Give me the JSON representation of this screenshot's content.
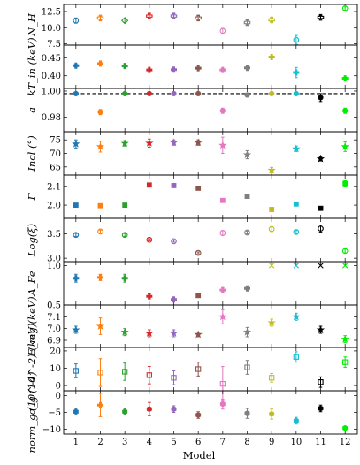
{
  "model_colors": [
    "#1f77b4",
    "#ff7f0e",
    "#2ca02c",
    "#d62728",
    "#9467bd",
    "#8c564b",
    "#e377c2",
    "#7f7f7f",
    "#bcbd22",
    "#17becf",
    "#000000",
    "#00ee00"
  ],
  "chart_data": {
    "type": "scatter",
    "x_label": "Model",
    "x": [
      1,
      2,
      3,
      4,
      5,
      6,
      7,
      8,
      9,
      10,
      11,
      12
    ],
    "x_ticks": [
      "1",
      "2",
      "3",
      "4",
      "5",
      "6",
      "7",
      "8",
      "9",
      "10",
      "11",
      "12"
    ],
    "xlim": [
      0.5,
      12.5
    ],
    "panels": [
      {
        "key": "nh",
        "ylabel": "N_H",
        "ylim": [
          7.3,
          13.6
        ],
        "yticks": [
          7.5,
          10.0,
          12.5
        ],
        "yticklabels": [
          "7.5",
          "10.0",
          "12.5"
        ],
        "markers": [
          "o",
          "P",
          "D",
          "P",
          "P",
          "P",
          "o",
          "P",
          "P",
          "o",
          "P",
          "o"
        ],
        "filled": [
          false,
          false,
          false,
          false,
          false,
          false,
          false,
          false,
          false,
          false,
          false,
          false
        ],
        "values": [
          11.1,
          11.5,
          11.1,
          11.8,
          11.8,
          11.5,
          9.5,
          10.8,
          11.2,
          8.1,
          11.6,
          13.0
        ],
        "errors": [
          0.4,
          0.3,
          0.3,
          0.4,
          0.3,
          0.4,
          0.4,
          0.4,
          0.3,
          0.7,
          0.3,
          0.3
        ]
      },
      {
        "key": "kt",
        "ylabel": "kT_in (keV)",
        "ylim": [
          0.365,
          0.485
        ],
        "yticks": [
          0.4,
          0.45
        ],
        "yticklabels": [
          "0.40",
          "0.45"
        ],
        "markers": [
          "P",
          "P",
          "P",
          "P",
          "P",
          "P",
          "P",
          "P",
          "P",
          "P",
          "P",
          "P"
        ],
        "filled": [
          true,
          true,
          true,
          true,
          true,
          true,
          true,
          true,
          true,
          true,
          true,
          true
        ],
        "values": [
          0.428,
          0.434,
          0.427,
          0.416,
          0.417,
          0.421,
          0.416,
          0.422,
          0.452,
          0.409,
          null,
          0.393
        ],
        "errors": [
          0.004,
          0.002,
          0.003,
          0.002,
          0.002,
          0.002,
          0.004,
          0.003,
          0.002,
          0.014,
          null,
          0.003
        ]
      },
      {
        "key": "a",
        "ylabel": "a",
        "ylim": [
          0.969,
          1.002
        ],
        "yticks": [
          0.98,
          1.0
        ],
        "yticklabels": [
          "0.98",
          "1.00"
        ],
        "reference_line": 0.998,
        "markers": [
          "o",
          "o",
          "o",
          "o",
          "o",
          "o",
          "o",
          "o",
          "o",
          "o",
          "o",
          "o"
        ],
        "filled": [
          true,
          true,
          true,
          true,
          true,
          true,
          true,
          true,
          true,
          true,
          true,
          true
        ],
        "values": [
          0.998,
          0.984,
          0.998,
          0.998,
          0.998,
          0.998,
          0.985,
          0.997,
          0.998,
          0.998,
          0.995,
          0.985
        ],
        "errors": [
          0.0005,
          0.002,
          0.0005,
          0.0005,
          0.0005,
          0.0005,
          0.002,
          0.0015,
          0.0005,
          0.0005,
          0.003,
          0.002
        ]
      },
      {
        "key": "incl",
        "ylabel": "Incl (°)",
        "ylim": [
          62,
          78
        ],
        "yticks": [
          65,
          70,
          75
        ],
        "yticklabels": [
          "65",
          "70",
          "75"
        ],
        "markers": [
          "*",
          "*",
          "*",
          "*",
          "*",
          "*",
          "*",
          "*",
          "*",
          "*",
          "*",
          "*"
        ],
        "filled": [
          true,
          true,
          true,
          true,
          true,
          true,
          true,
          true,
          true,
          true,
          true,
          true
        ],
        "values": [
          73.5,
          72.5,
          73.7,
          73.8,
          74.0,
          74.0,
          73.0,
          69.5,
          63.8,
          71.7,
          68.0,
          72.5
        ],
        "errors": [
          1.5,
          2.0,
          1.0,
          1.5,
          1.0,
          1.0,
          3.0,
          1.5,
          1.0,
          1.0,
          0.8,
          1.8
        ]
      },
      {
        "key": "gamma",
        "ylabel": "Γ",
        "ylim": [
          1.93,
          2.16
        ],
        "yticks": [
          2.0,
          2.1
        ],
        "yticklabels": [
          "2.0",
          "2.1"
        ],
        "markers": [
          "s",
          "s",
          "s",
          "s",
          "s",
          "s",
          "s",
          "s",
          "s",
          "s",
          "s",
          "s"
        ],
        "filled": [
          true,
          true,
          true,
          true,
          true,
          true,
          true,
          true,
          true,
          true,
          true,
          true
        ],
        "values": [
          2.0,
          1.997,
          2.0,
          2.107,
          2.104,
          2.09,
          2.025,
          2.047,
          1.977,
          2.006,
          1.983,
          2.115
        ],
        "errors": [
          0.0,
          0.0,
          0.0,
          0.0,
          0.0,
          0.006,
          0.008,
          0.004,
          0.004,
          0.002,
          0.0,
          0.015
        ]
      },
      {
        "key": "logxi",
        "ylabel": "Log(ξ)",
        "ylim": [
          2.93,
          3.82
        ],
        "yticks": [
          3.0,
          3.5
        ],
        "yticklabels": [
          "3.0",
          "3.5"
        ],
        "markers": [
          "o",
          "o",
          "o",
          "o",
          "o",
          "o",
          "o",
          "o",
          "o",
          "o",
          "o",
          "o"
        ],
        "filled": [
          false,
          false,
          false,
          false,
          false,
          false,
          false,
          false,
          false,
          false,
          false,
          false
        ],
        "values": [
          3.48,
          3.55,
          3.48,
          3.38,
          3.35,
          3.11,
          3.52,
          3.53,
          3.6,
          3.54,
          3.61,
          3.15
        ],
        "errors": [
          0.03,
          0.03,
          0.03,
          0.02,
          0.02,
          0.02,
          0.05,
          0.03,
          0.05,
          0.03,
          0.07,
          0.04
        ]
      },
      {
        "key": "afe",
        "ylabel": "A_Fe",
        "ylim": [
          0.5,
          1.05
        ],
        "yticks": [
          0.5,
          1.0
        ],
        "yticklabels": [
          "0.5",
          "1.0"
        ],
        "markers": [
          "P",
          "P",
          "P",
          "P",
          "P",
          "s",
          "P",
          "P",
          "x",
          "x",
          "x",
          "x"
        ],
        "filled": [
          true,
          true,
          true,
          true,
          true,
          true,
          true,
          true,
          true,
          true,
          true,
          true
        ],
        "values": [
          0.84,
          0.85,
          0.84,
          0.61,
          0.57,
          0.62,
          0.69,
          0.71,
          1.0,
          1.0,
          1.0,
          1.0
        ],
        "errors": [
          0.05,
          0.04,
          0.05,
          0.03,
          0.02,
          0.01,
          0.03,
          0.02,
          0.0,
          0.0,
          0.0,
          0.0
        ]
      },
      {
        "key": "eng",
        "ylabel": "E_mg (keV)",
        "ylim": [
          6.84,
          7.2
        ],
        "yticks": [
          6.9,
          7.0,
          7.1
        ],
        "yticklabels": [
          "6.9",
          "7.0",
          "7.1"
        ],
        "markers": [
          "*",
          "*",
          "*",
          "*",
          "*",
          "*",
          "*",
          "*",
          "*",
          "*",
          "*",
          "*"
        ],
        "filled": [
          true,
          true,
          true,
          true,
          true,
          true,
          true,
          true,
          true,
          true,
          true,
          true
        ],
        "values": [
          6.99,
          7.02,
          6.97,
          6.96,
          6.96,
          6.95,
          7.1,
          6.97,
          7.05,
          7.1,
          6.99,
          6.91
        ],
        "errors": [
          0.03,
          0.07,
          0.03,
          0.03,
          0.03,
          0.02,
          0.06,
          0.04,
          0.03,
          0.03,
          0.03,
          0.03
        ]
      },
      {
        "key": "sigma",
        "ylabel": "σ_g (10^-2) (keV)",
        "ylim": [
          -3,
          22
        ],
        "yticks": [
          0,
          10,
          20
        ],
        "yticklabels": [
          "0",
          "10",
          "20"
        ],
        "markers": [
          "s",
          "s",
          "s",
          "s",
          "s",
          "s",
          "s",
          "s",
          "s",
          "s",
          "s",
          "s"
        ],
        "filled": [
          false,
          false,
          false,
          false,
          false,
          false,
          false,
          false,
          false,
          false,
          false,
          false
        ],
        "values": [
          8.5,
          7.5,
          8.0,
          6.0,
          4.5,
          9.5,
          1.0,
          10.5,
          4.5,
          16.5,
          2.0,
          13.5
        ],
        "errors": [
          4.0,
          8.0,
          5.0,
          5.0,
          4.0,
          4.0,
          10.0,
          4.0,
          2.5,
          3.0,
          3.0,
          3.0
        ]
      },
      {
        "key": "norm",
        "ylabel": "norm_g (10^-4)",
        "ylim": [
          -11.5,
          1.5
        ],
        "yticks": [
          -10,
          -5,
          0
        ],
        "yticklabels": [
          "−10",
          "−5",
          "0"
        ],
        "markers": [
          "h",
          "P",
          "h",
          "h",
          "h",
          "h",
          "h",
          "h",
          "h",
          "h",
          "h",
          "h"
        ],
        "filled": [
          true,
          true,
          true,
          true,
          true,
          true,
          true,
          true,
          true,
          true,
          true,
          true
        ],
        "values": [
          -4.8,
          -2.8,
          -4.8,
          -4.0,
          -4.0,
          -5.8,
          -2.5,
          -5.3,
          -5.5,
          -7.5,
          -3.8,
          -9.7
        ],
        "errors": [
          1.0,
          3.5,
          1.0,
          2.0,
          1.0,
          1.0,
          1.5,
          1.5,
          1.5,
          1.0,
          1.0,
          0.5
        ]
      }
    ]
  }
}
